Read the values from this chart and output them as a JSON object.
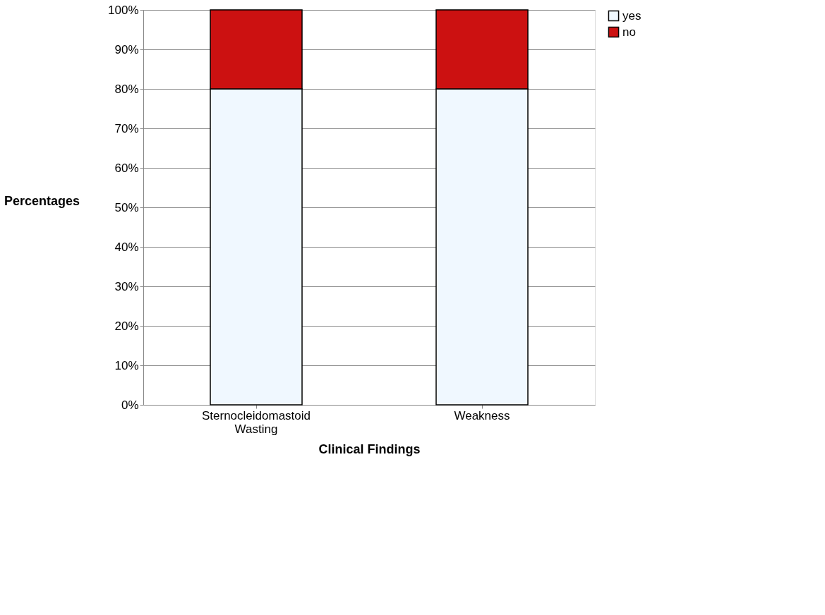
{
  "chart_data": {
    "type": "bar",
    "stacked": true,
    "xlabel": "Clinical Findings",
    "ylabel": "Percentages",
    "categories": [
      "Sternocleidomastoid Wasting",
      "Weakness"
    ],
    "series": [
      {
        "name": "yes",
        "color": "#f0f8ff",
        "values": [
          80,
          80
        ]
      },
      {
        "name": "no",
        "color": "#cc1111",
        "values": [
          20,
          20
        ]
      }
    ],
    "ylim": [
      0,
      100
    ],
    "yticks": [
      {
        "value": 0,
        "label": "0%"
      },
      {
        "value": 10,
        "label": "10%"
      },
      {
        "value": 20,
        "label": "20%"
      },
      {
        "value": 30,
        "label": "30%"
      },
      {
        "value": 40,
        "label": "40%"
      },
      {
        "value": 50,
        "label": "50%"
      },
      {
        "value": 60,
        "label": "60%"
      },
      {
        "value": 70,
        "label": "70%"
      },
      {
        "value": 80,
        "label": "80%"
      },
      {
        "value": 90,
        "label": "90%"
      },
      {
        "value": 100,
        "label": "100%"
      }
    ],
    "grid": "y",
    "legend": "right"
  }
}
